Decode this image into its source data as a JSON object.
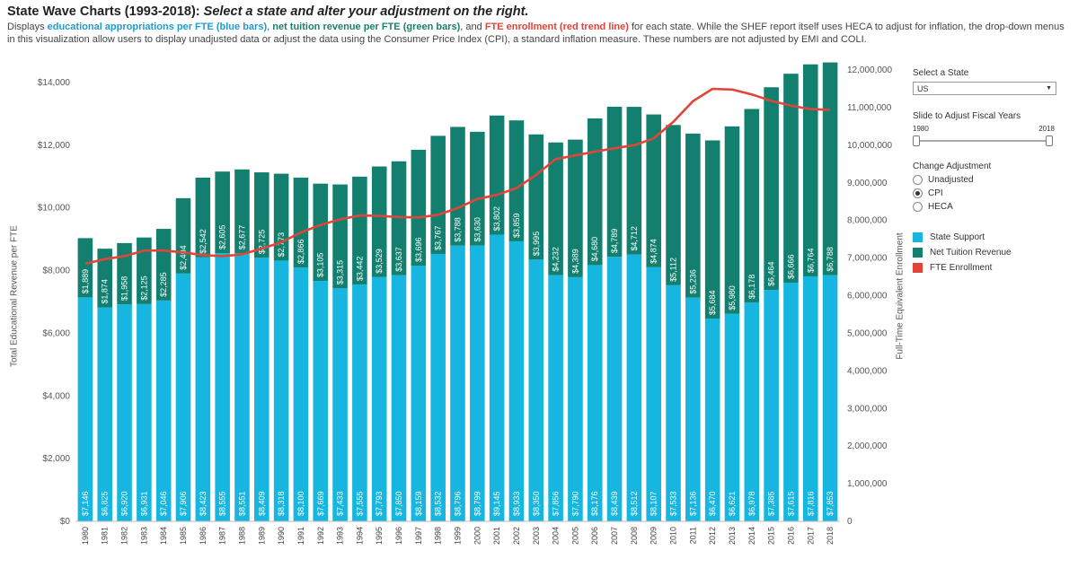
{
  "header": {
    "title_main": "State Wave Charts (1993-2018): ",
    "title_sub": "Select a state and alter your adjustment on the right.",
    "desc_1": "Displays ",
    "desc_blue": "educational appropriations per FTE (blue bars)",
    "desc_2": ", ",
    "desc_green": "net tuition revenue per FTE (green bars)",
    "desc_3": ", and ",
    "desc_red": "FTE enrollment (red trend line)",
    "desc_4": " for each state. While the SHEF report itself uses HECA to adjust for inflation, the drop-down menus in this visualization allow users to display unadjusted data or adjust the data using the Consumer Price Index (CPI), a standard inflation measure. These numbers are not adjusted by EMI and COLI."
  },
  "controls": {
    "state_label": "Select a State",
    "state_value": "US",
    "slider_label": "Slide to Adjust Fiscal Years",
    "slider_start": "1980",
    "slider_end": "2018",
    "adjust_label": "Change Adjustment",
    "options": [
      "Unadjusted",
      "CPI",
      "HECA"
    ],
    "selected": "CPI"
  },
  "legend": {
    "items": [
      {
        "label": "State Support",
        "color": "#16b6e0"
      },
      {
        "label": "Net Tuition Revenue",
        "color": "#13806f"
      },
      {
        "label": "FTE Enrollment",
        "color": "#e0443a"
      }
    ]
  },
  "chart_data": {
    "type": "bar",
    "stacked": true,
    "ylabel": "Total Educational Revenue per FTE",
    "y2label": "Full-Time Equivalent Enrollment",
    "ylim": [
      0,
      14400
    ],
    "y2lim": [
      0,
      12000000
    ],
    "yticks": [
      "$0",
      "$2,000",
      "$4,000",
      "$6,000",
      "$8,000",
      "$10,000",
      "$12,000",
      "$14,000"
    ],
    "y2ticks": [
      "0",
      "1,000,000",
      "2,000,000",
      "3,000,000",
      "4,000,000",
      "5,000,000",
      "6,000,000",
      "7,000,000",
      "8,000,000",
      "9,000,000",
      "10,000,000",
      "11,000,000",
      "12,000,000"
    ],
    "categories": [
      "1980",
      "1981",
      "1982",
      "1983",
      "1984",
      "1985",
      "1986",
      "1987",
      "1988",
      "1989",
      "1990",
      "1991",
      "1992",
      "1993",
      "1994",
      "1995",
      "1996",
      "1997",
      "1998",
      "1999",
      "2000",
      "2001",
      "2002",
      "2003",
      "2004",
      "2005",
      "2006",
      "2007",
      "2008",
      "2009",
      "2010",
      "2011",
      "2012",
      "2013",
      "2014",
      "2015",
      "2016",
      "2017",
      "2018"
    ],
    "series": [
      {
        "name": "State Support",
        "color": "#16b6e0",
        "values": [
          7146,
          6825,
          6920,
          6931,
          7046,
          7906,
          8423,
          8555,
          8551,
          8409,
          8318,
          8100,
          7669,
          7433,
          7555,
          7793,
          7850,
          8159,
          8532,
          8796,
          8799,
          9145,
          8933,
          8350,
          7856,
          7790,
          8176,
          8439,
          8512,
          8107,
          7533,
          7136,
          6470,
          6621,
          6978,
          7385,
          7615,
          7816,
          7853
        ],
        "labels": [
          "$7,146",
          "$6,825",
          "$6,920",
          "$6,931",
          "$7,046",
          "$7,906",
          "$8,423",
          "$8,555",
          "$8,551",
          "$8,409",
          "$8,318",
          "$8,100",
          "$7,669",
          "$7,433",
          "$7,555",
          "$7,793",
          "$7,850",
          "$8,159",
          "$8,532",
          "$8,796",
          "$8,799",
          "$9,145",
          "$8,933",
          "$8,350",
          "$7,856",
          "$7,790",
          "$8,176",
          "$8,439",
          "$8,512",
          "$8,107",
          "$7,533",
          "$7,136",
          "$6,470",
          "$6,621",
          "$6,978",
          "$7,385",
          "$7,615",
          "$7,816",
          "$7,853"
        ]
      },
      {
        "name": "Net Tuition Revenue",
        "color": "#13806f",
        "values": [
          1889,
          1874,
          1958,
          2125,
          2285,
          2404,
          2542,
          2605,
          2677,
          2725,
          2773,
          2866,
          3105,
          3315,
          3442,
          3529,
          3637,
          3696,
          3767,
          3788,
          3630,
          3802,
          3859,
          3995,
          4232,
          4389,
          4680,
          4789,
          4712,
          4874,
          5112,
          5236,
          5684,
          5980,
          6178,
          6464,
          6666,
          6764,
          6788
        ],
        "labels": [
          "$1,889",
          "$1,874",
          "$1,958",
          "$2,125",
          "$2,285",
          "$2,404",
          "$2,542",
          "$2,605",
          "$2,677",
          "$2,725",
          "$2,773",
          "$2,866",
          "$3,105",
          "$3,315",
          "$3,442",
          "$3,529",
          "$3,637",
          "$3,696",
          "$3,767",
          "$3,788",
          "$3,630",
          "$3,802",
          "$3,859",
          "$3,995",
          "$4,232",
          "$4,389",
          "$4,680",
          "$4,789",
          "$4,712",
          "$4,874",
          "$5,112",
          "$5,236",
          "$5,684",
          "$5,980",
          "$6,178",
          "$6,464",
          "$6,666",
          "$6,764",
          "$6,788"
        ]
      },
      {
        "name": "FTE Enrollment",
        "color": "#e0443a",
        "axis": "right",
        "values": [
          6850000,
          6970000,
          7050000,
          7200000,
          7200000,
          7150000,
          7080000,
          7050000,
          7100000,
          7250000,
          7420000,
          7680000,
          7880000,
          8030000,
          8130000,
          8120000,
          8090000,
          8080000,
          8150000,
          8330000,
          8570000,
          8680000,
          8860000,
          9210000,
          9630000,
          9730000,
          9830000,
          9920000,
          10000000,
          10180000,
          10620000,
          11170000,
          11500000,
          11480000,
          11350000,
          11180000,
          11050000,
          10960000,
          10940000
        ]
      }
    ]
  }
}
